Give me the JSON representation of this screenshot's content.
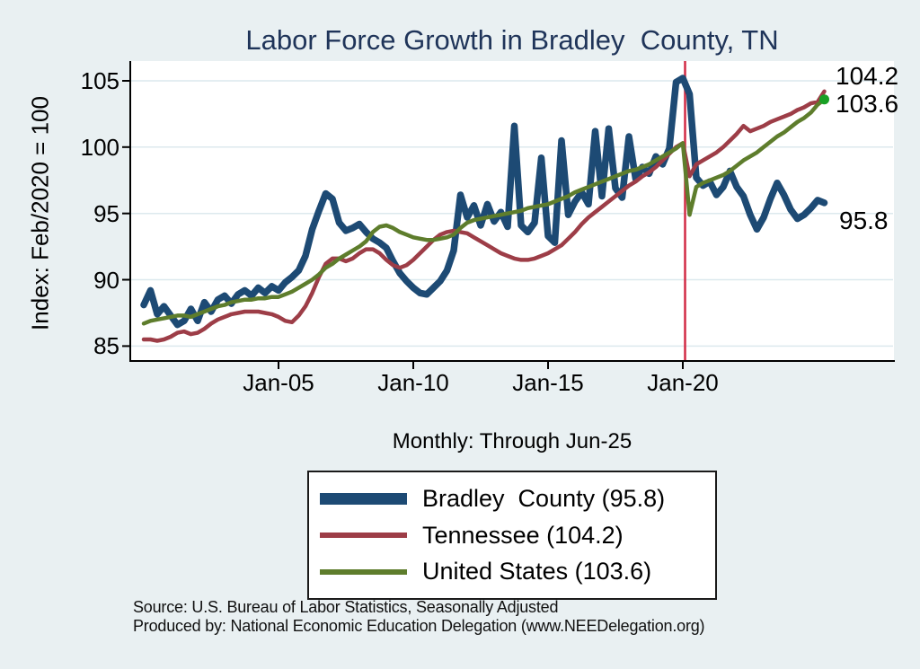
{
  "title": "Labor Force Growth in Bradley  County, TN",
  "subtitle": "Monthly: Through Jun-25",
  "y_axis_title": "Index: Feb/2020 = 100",
  "end_labels": {
    "tennessee": "104.2",
    "united_states": "103.6",
    "bradley": "95.8"
  },
  "legend": {
    "items": [
      {
        "label": "Bradley  County (95.8)"
      },
      {
        "label": "Tennessee (104.2)"
      },
      {
        "label": "United States (103.6)"
      }
    ]
  },
  "source": {
    "line1": "Source: U.S. Bureau of Labor Statistics, Seasonally Adjusted",
    "line2": "Produced by: National Economic Education Delegation (www.NEEDelegation.org)"
  },
  "colors": {
    "background": "#e9f0f2",
    "plot_background": "#ffffff",
    "gridline": "#dce9ee",
    "axis": "#000000",
    "title": "#1f3459",
    "bradley_county": "#1d4a74",
    "tennessee": "#9d3d47",
    "united_states": "#5e7d2c",
    "event_line": "#d22b45",
    "end_marker": "#18a024"
  },
  "chart_data": {
    "type": "line",
    "title": "Labor Force Growth in Bradley  County, TN",
    "xlabel": "Monthly: Through Jun-25",
    "ylabel": "Index: Feb/2020 = 100",
    "grid": true,
    "legend_position": "bottom",
    "ylim": [
      83.9,
      106.5
    ],
    "y_ticks": [
      85,
      90,
      95,
      100,
      105
    ],
    "x_ticks": [
      {
        "label": "Jan-05",
        "year": 2005
      },
      {
        "label": "Jan-10",
        "year": 2010
      },
      {
        "label": "Jan-15",
        "year": 2015
      },
      {
        "label": "Jan-20",
        "year": 2020
      }
    ],
    "event_line": {
      "year": 2020.083,
      "meaning": "Feb/2020"
    },
    "x_start": 2000.0,
    "x_step_years": 0.25,
    "x_end": 2025.25,
    "sampling": "quarterly approximation of monthly series",
    "series": [
      {
        "name": "Bradley County",
        "final_value": 95.8,
        "color": "#1d4a74",
        "width": 7.5,
        "values": [
          88.1,
          89.2,
          87.4,
          88.0,
          87.3,
          86.6,
          86.9,
          87.8,
          86.9,
          88.3,
          87.6,
          88.5,
          88.8,
          88.2,
          88.9,
          89.2,
          88.8,
          89.4,
          89.0,
          89.5,
          89.2,
          89.8,
          90.2,
          90.7,
          91.8,
          93.8,
          95.2,
          96.5,
          96.1,
          94.3,
          93.7,
          93.9,
          94.2,
          93.6,
          93.1,
          92.8,
          92.4,
          91.4,
          90.5,
          89.9,
          89.4,
          89.0,
          88.9,
          89.4,
          89.9,
          90.7,
          92.2,
          96.4,
          94.7,
          95.6,
          94.1,
          95.7,
          94.4,
          95.1,
          94.0,
          101.6,
          94.1,
          93.6,
          94.3,
          99.2,
          93.3,
          92.8,
          100.5,
          94.9,
          95.9,
          96.6,
          95.7,
          101.2,
          96.3,
          101.4,
          96.9,
          96.2,
          100.8,
          97.6,
          98.5,
          98.0,
          99.3,
          98.7,
          99.9,
          104.9,
          105.2,
          104.0,
          97.7,
          97.1,
          97.4,
          96.4,
          97.0,
          98.2,
          97.0,
          96.3,
          94.9,
          93.8,
          94.7,
          96.1,
          97.3,
          96.4,
          95.3,
          94.6,
          94.9,
          95.4,
          96.0,
          95.8
        ]
      },
      {
        "name": "Tennessee",
        "final_value": 104.2,
        "color": "#9d3d47",
        "width": 4.5,
        "values": [
          85.5,
          85.5,
          85.4,
          85.5,
          85.7,
          86.0,
          86.1,
          85.9,
          86.0,
          86.3,
          86.7,
          87.0,
          87.2,
          87.4,
          87.5,
          87.6,
          87.6,
          87.6,
          87.5,
          87.4,
          87.2,
          86.9,
          86.8,
          87.3,
          88.0,
          89.0,
          90.2,
          91.2,
          91.6,
          91.6,
          91.4,
          91.6,
          92.0,
          92.3,
          92.3,
          92.0,
          91.5,
          91.1,
          90.9,
          91.1,
          91.5,
          92.0,
          92.5,
          93.0,
          93.4,
          93.6,
          93.7,
          93.6,
          93.5,
          93.2,
          92.9,
          92.6,
          92.3,
          92.0,
          91.8,
          91.6,
          91.5,
          91.5,
          91.6,
          91.8,
          92.0,
          92.3,
          92.6,
          93.1,
          93.6,
          94.2,
          94.7,
          95.1,
          95.5,
          95.9,
          96.3,
          96.7,
          97.1,
          97.4,
          97.8,
          98.1,
          98.5,
          99.0,
          99.5,
          100.0,
          100.3,
          97.8,
          98.7,
          99.0,
          99.3,
          99.6,
          100.0,
          100.5,
          101.0,
          101.6,
          101.2,
          101.4,
          101.6,
          101.9,
          102.1,
          102.3,
          102.5,
          102.8,
          103.0,
          103.3,
          103.4,
          104.2
        ]
      },
      {
        "name": "United States",
        "final_value": 103.6,
        "color": "#5e7d2c",
        "width": 4.5,
        "end_marker_color": "#18a024",
        "values": [
          86.7,
          86.9,
          87.0,
          87.1,
          87.2,
          87.3,
          87.3,
          87.2,
          87.4,
          87.6,
          87.8,
          88.0,
          88.1,
          88.3,
          88.4,
          88.5,
          88.5,
          88.6,
          88.6,
          88.7,
          88.7,
          88.9,
          89.1,
          89.4,
          89.7,
          90.0,
          90.4,
          90.9,
          91.2,
          91.6,
          91.9,
          92.2,
          92.5,
          92.9,
          93.6,
          94.0,
          94.1,
          93.9,
          93.6,
          93.4,
          93.2,
          93.1,
          93.0,
          93.0,
          93.1,
          93.2,
          93.4,
          93.9,
          94.3,
          94.5,
          94.6,
          94.7,
          94.8,
          94.9,
          95.0,
          95.1,
          95.2,
          95.4,
          95.5,
          95.6,
          95.7,
          95.9,
          96.1,
          96.3,
          96.6,
          96.8,
          97.0,
          97.2,
          97.4,
          97.6,
          97.8,
          98.0,
          98.2,
          98.3,
          98.5,
          98.7,
          99.0,
          99.3,
          99.6,
          99.9,
          100.3,
          94.9,
          97.0,
          97.3,
          97.5,
          97.7,
          97.9,
          98.2,
          98.6,
          99.0,
          99.3,
          99.6,
          100.0,
          100.4,
          100.8,
          101.1,
          101.5,
          101.9,
          102.2,
          102.6,
          103.2,
          103.6
        ]
      }
    ]
  }
}
